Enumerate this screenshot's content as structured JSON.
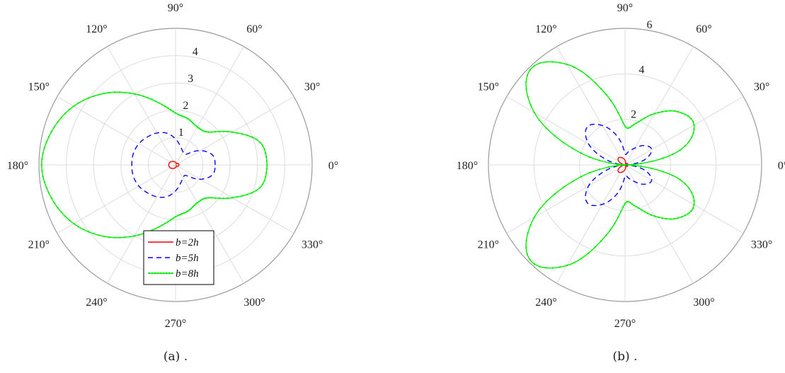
{
  "chart_data": [
    {
      "type": "polar",
      "caption": "(a) .",
      "rlim": [
        0,
        5
      ],
      "r_ticks": [
        "1",
        "2",
        "3",
        "4"
      ],
      "angle_ticks": [
        "0°",
        "30°",
        "60°",
        "90°",
        "120°",
        "150°",
        "180°",
        "210°",
        "240°",
        "270°",
        "300°",
        "330°"
      ],
      "grid": true,
      "legend": {
        "placement": "bottom-right"
      },
      "series": [
        {
          "name": "b=2h",
          "color": "#ff0000",
          "dash": "solid",
          "markers": false,
          "theta_deg": [
            0,
            15,
            30,
            45,
            60,
            75,
            90,
            105,
            120,
            135,
            150,
            165,
            180,
            195,
            210,
            225,
            240,
            255,
            270,
            285,
            300,
            315,
            330,
            345,
            360
          ],
          "r": [
            0.12,
            0.12,
            0.1,
            0.06,
            0.04,
            0.08,
            0.1,
            0.12,
            0.15,
            0.18,
            0.22,
            0.24,
            0.25,
            0.24,
            0.22,
            0.18,
            0.15,
            0.12,
            0.1,
            0.08,
            0.04,
            0.06,
            0.1,
            0.12,
            0.12
          ]
        },
        {
          "name": "b=5h",
          "color": "#0000ff",
          "dash": "dashed",
          "markers": false,
          "theta_deg": [
            0,
            15,
            30,
            45,
            60,
            75,
            90,
            105,
            120,
            135,
            150,
            165,
            180,
            195,
            210,
            225,
            240,
            255,
            270,
            285,
            300,
            315,
            330,
            345,
            360
          ],
          "r": [
            1.45,
            1.4,
            1.05,
            0.55,
            0.55,
            0.7,
            0.95,
            1.2,
            1.35,
            1.45,
            1.55,
            1.6,
            1.6,
            1.6,
            1.55,
            1.45,
            1.35,
            1.2,
            0.95,
            0.7,
            0.55,
            0.55,
            1.05,
            1.4,
            1.45
          ]
        },
        {
          "name": "b=8h",
          "color": "#00ee00",
          "dash": "solid",
          "markers": true,
          "theta_deg": [
            0,
            15,
            30,
            45,
            60,
            75,
            90,
            105,
            120,
            135,
            150,
            165,
            180,
            195,
            210,
            225,
            240,
            255,
            270,
            285,
            300,
            315,
            330,
            345,
            360
          ],
          "r": [
            3.35,
            3.2,
            2.4,
            1.7,
            1.6,
            1.75,
            1.9,
            2.35,
            3.0,
            3.7,
            4.3,
            4.7,
            4.9,
            4.7,
            4.3,
            3.7,
            3.0,
            2.35,
            1.9,
            1.75,
            1.6,
            1.7,
            2.4,
            3.2,
            3.35
          ]
        }
      ]
    },
    {
      "type": "polar",
      "caption": "(b) .",
      "rlim": [
        0,
        6
      ],
      "r_ticks": [
        "2",
        "4",
        "6"
      ],
      "angle_ticks": [
        "0°",
        "30°",
        "60°",
        "90°",
        "120°",
        "150°",
        "180°",
        "210°",
        "240°",
        "270°",
        "300°",
        "330°"
      ],
      "grid": true,
      "series": [
        {
          "name": "b=2h",
          "color": "#ff0000",
          "dash": "solid",
          "markers": false,
          "theta_deg": [
            0,
            15,
            30,
            45,
            60,
            75,
            90,
            105,
            120,
            135,
            150,
            165,
            180,
            195,
            210,
            225,
            240,
            255,
            270,
            285,
            300,
            315,
            330,
            345,
            360
          ],
          "r": [
            0.0,
            0.1,
            0.12,
            0.08,
            0.05,
            0.1,
            0.2,
            0.3,
            0.38,
            0.42,
            0.32,
            0.12,
            0.0,
            0.12,
            0.32,
            0.42,
            0.38,
            0.3,
            0.2,
            0.1,
            0.05,
            0.08,
            0.12,
            0.1,
            0.0
          ]
        },
        {
          "name": "b=5h",
          "color": "#0000ff",
          "dash": "dashed",
          "markers": false,
          "theta_deg": [
            0,
            15,
            30,
            45,
            60,
            75,
            90,
            105,
            120,
            135,
            150,
            165,
            180,
            195,
            210,
            225,
            240,
            255,
            270,
            285,
            300,
            315,
            330,
            345,
            360
          ],
          "r": [
            0.0,
            0.9,
            1.35,
            1.2,
            0.85,
            0.6,
            0.5,
            1.3,
            2.0,
            2.35,
            1.85,
            0.8,
            0.0,
            0.8,
            1.85,
            2.35,
            2.0,
            1.3,
            0.5,
            0.6,
            0.85,
            1.2,
            1.35,
            0.9,
            0.0
          ]
        },
        {
          "name": "b=8h",
          "color": "#00ee00",
          "dash": "solid",
          "markers": true,
          "theta_deg": [
            0,
            15,
            30,
            45,
            60,
            75,
            90,
            105,
            120,
            135,
            150,
            165,
            180,
            195,
            210,
            225,
            240,
            255,
            270,
            285,
            300,
            315,
            330,
            345,
            360
          ],
          "r": [
            0.0,
            2.5,
            3.5,
            3.3,
            2.6,
            1.9,
            1.7,
            3.2,
            5.1,
            5.9,
            4.6,
            2.0,
            0.0,
            2.0,
            4.6,
            5.9,
            5.1,
            3.2,
            1.7,
            1.9,
            2.6,
            3.3,
            3.5,
            2.5,
            0.0
          ]
        }
      ]
    }
  ]
}
